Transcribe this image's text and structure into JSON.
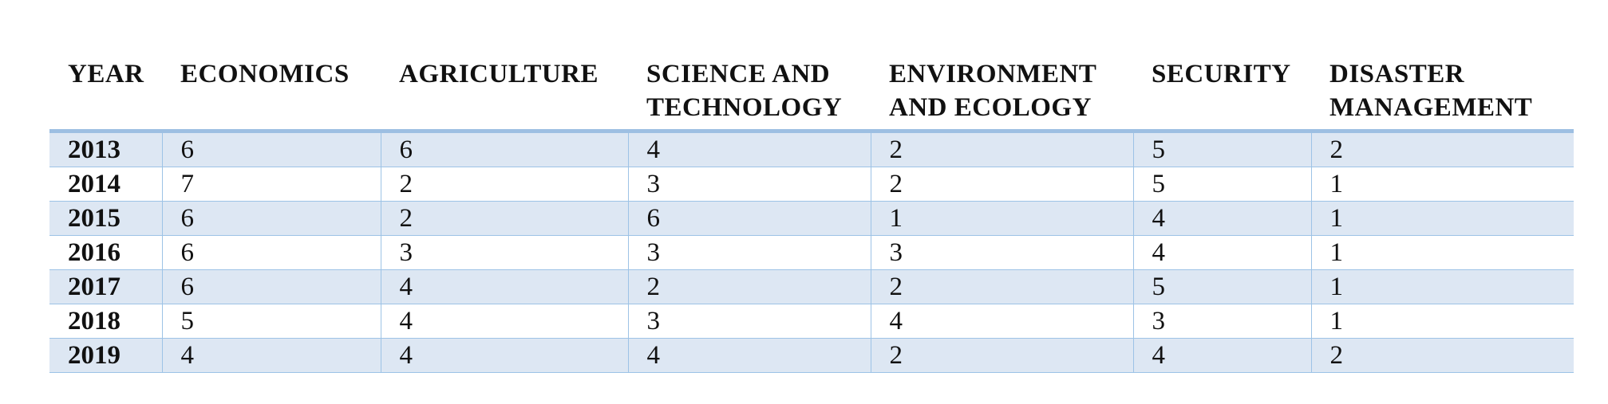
{
  "table": {
    "columns": [
      "YEAR",
      "ECONOMICS",
      "AGRICULTURE",
      "SCIENCE AND TECHNOLOGY",
      "ENVIRONMENT AND ECOLOGY",
      "SECURITY",
      "DISASTER MANAGEMENT"
    ],
    "rows": [
      [
        2013,
        6,
        6,
        4,
        2,
        5,
        2
      ],
      [
        2014,
        7,
        2,
        3,
        2,
        5,
        1
      ],
      [
        2015,
        6,
        2,
        6,
        1,
        4,
        1
      ],
      [
        2016,
        6,
        3,
        3,
        3,
        4,
        1
      ],
      [
        2017,
        6,
        4,
        2,
        2,
        5,
        1
      ],
      [
        2018,
        5,
        4,
        3,
        4,
        3,
        1
      ],
      [
        2019,
        4,
        4,
        4,
        2,
        4,
        2
      ]
    ]
  }
}
